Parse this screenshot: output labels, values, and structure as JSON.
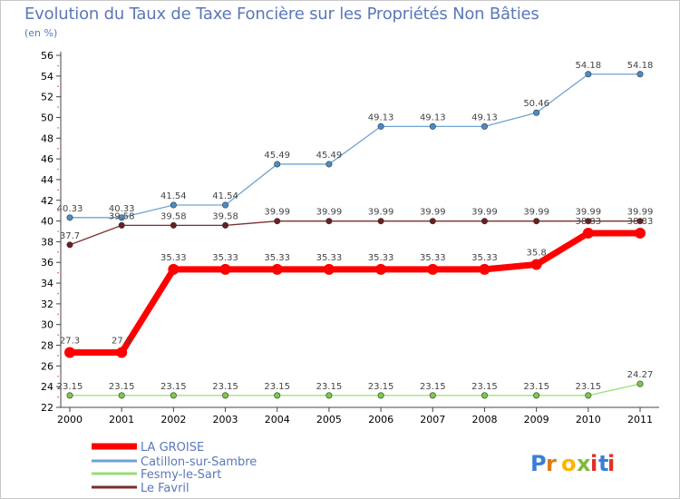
{
  "title": "Evolution du Taux de Taxe Foncière sur les Propriétés Non Bâties",
  "subtitle": "(en %)",
  "watermark": "Proxiti",
  "chart_data": {
    "type": "line",
    "title": "Evolution du Taux de Taxe Foncière sur les Propriétés Non Bâties",
    "ylabel": "(en %)",
    "xlabel": "",
    "ylim": [
      22,
      56
    ],
    "yticks": [
      22,
      24,
      26,
      28,
      30,
      32,
      34,
      36,
      38,
      40,
      42,
      44,
      46,
      48,
      50,
      52,
      54,
      56
    ],
    "grid": false,
    "legend": "bottom-left",
    "x": [
      "2000",
      "2001",
      "2002",
      "2003",
      "2004",
      "2005",
      "2006",
      "2007",
      "2008",
      "2009",
      "2010",
      "2011"
    ],
    "series": [
      {
        "name": "LA GROISE",
        "color": "#ff0000",
        "values": [
          27.3,
          27.3,
          35.33,
          35.33,
          35.33,
          35.33,
          35.33,
          35.33,
          35.33,
          35.8,
          38.83,
          38.83
        ],
        "labels": [
          "27.3",
          "27.3",
          "35.33",
          "35.33",
          "35.33",
          "35.33",
          "35.33",
          "35.33",
          "35.33",
          "35.8",
          "38.83",
          "38.83"
        ]
      },
      {
        "name": "Catillon-sur-Sambre",
        "color": "#6fa3d3",
        "values": [
          40.33,
          40.33,
          41.54,
          41.54,
          45.49,
          45.49,
          49.13,
          49.13,
          49.13,
          50.46,
          54.18,
          54.18
        ],
        "labels": [
          "40.33",
          "40.33",
          "41.54",
          "41.54",
          "45.49",
          "45.49",
          "49.13",
          "49.13",
          "49.13",
          "50.46",
          "54.18",
          "54.18"
        ]
      },
      {
        "name": "Fesmy-le-Sart",
        "color": "#99dd77",
        "values": [
          23.15,
          23.15,
          23.15,
          23.15,
          23.15,
          23.15,
          23.15,
          23.15,
          23.15,
          23.15,
          23.15,
          24.27
        ],
        "labels": [
          "23.15",
          "23.15",
          "23.15",
          "23.15",
          "23.15",
          "23.15",
          "23.15",
          "23.15",
          "23.15",
          "23.15",
          "23.15",
          "24.27"
        ]
      },
      {
        "name": "Le Favril",
        "color": "#7a2f2f",
        "values": [
          37.7,
          39.58,
          39.58,
          39.58,
          39.99,
          39.99,
          39.99,
          39.99,
          39.99,
          39.99,
          39.99,
          39.99
        ],
        "labels": [
          "37.7",
          "39.58",
          "39.58",
          "39.58",
          "39.99",
          "39.99",
          "39.99",
          "39.99",
          "39.99",
          "39.99",
          "39.99",
          "39.99"
        ]
      }
    ]
  }
}
